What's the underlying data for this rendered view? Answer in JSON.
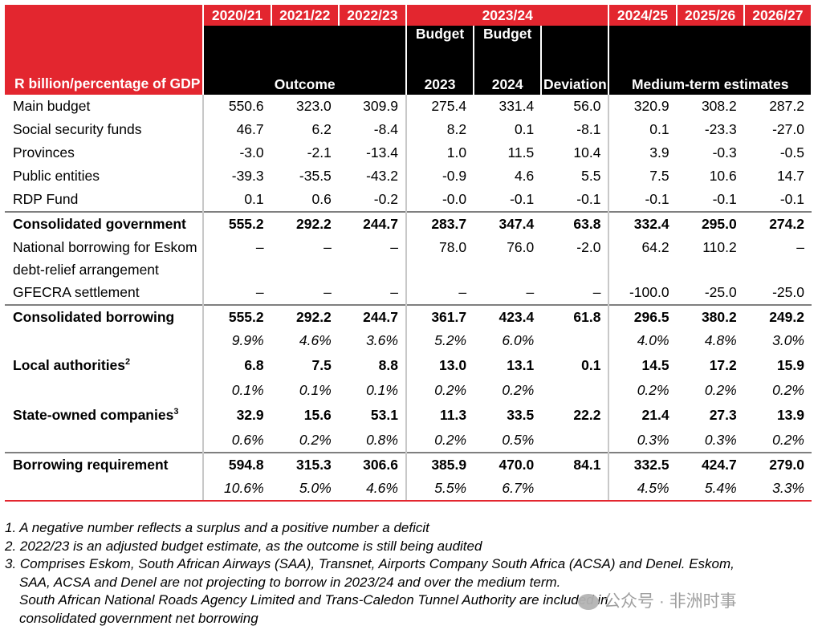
{
  "header": {
    "label": "R billion/percentage of GDP",
    "years_outcome": [
      "2020/21",
      "2021/22",
      "2022/23"
    ],
    "outcome_label": "Outcome",
    "year_current": "2023/24",
    "budget_a": {
      "top": "Budget",
      "bottom": "2023"
    },
    "budget_b": {
      "top": "Budget",
      "bottom": "2024"
    },
    "deviation": "Deviation",
    "years_mtef": [
      "2024/25",
      "2025/26",
      "2026/27"
    ],
    "mtef_label": "Medium-term estimates"
  },
  "rows": [
    {
      "label": "Main budget",
      "v": [
        "550.6",
        "323.0",
        "309.9",
        "275.4",
        "331.4",
        "56.0",
        "320.9",
        "308.2",
        "287.2"
      ]
    },
    {
      "label": "Social security funds",
      "v": [
        "46.7",
        "6.2",
        "-8.4",
        "8.2",
        "0.1",
        "-8.1",
        "0.1",
        "-23.3",
        "-27.0"
      ]
    },
    {
      "label": "Provinces",
      "v": [
        "-3.0",
        "-2.1",
        "-13.4",
        "1.0",
        "11.5",
        "10.4",
        "3.9",
        "-0.3",
        "-0.5"
      ]
    },
    {
      "label": "Public entities",
      "v": [
        "-39.3",
        "-35.5",
        "-43.2",
        "-0.9",
        "4.6",
        "5.5",
        "7.5",
        "10.6",
        "14.7"
      ]
    },
    {
      "label": "RDP Fund",
      "v": [
        "0.1",
        "0.6",
        "-0.2",
        "-0.0",
        "-0.1",
        "-0.1",
        "-0.1",
        "-0.1",
        "-0.1"
      ]
    },
    {
      "label": "Consolidated government",
      "v": [
        "555.2",
        "292.2",
        "244.7",
        "283.7",
        "347.4",
        "63.8",
        "332.4",
        "295.0",
        "274.2"
      ]
    },
    {
      "label": "National borrowing for Eskom debt-relief arrangement",
      "v": [
        "–",
        "–",
        "–",
        "78.0",
        "76.0",
        "-2.0",
        "64.2",
        "110.2",
        "–"
      ]
    },
    {
      "label": "GFECRA settlement",
      "v": [
        "–",
        "–",
        "–",
        "–",
        "–",
        "–",
        "-100.0",
        "-25.0",
        "-25.0"
      ]
    },
    {
      "label": "Consolidated borrowing",
      "v": [
        "555.2",
        "292.2",
        "244.7",
        "361.7",
        "423.4",
        "61.8",
        "296.5",
        "380.2",
        "249.2"
      ]
    },
    {
      "label": "",
      "v": [
        "9.9%",
        "4.6%",
        "3.6%",
        "5.2%",
        "6.0%",
        "",
        "4.0%",
        "4.8%",
        "3.0%"
      ]
    },
    {
      "label": "Local authorities",
      "sup": "2",
      "v": [
        "6.8",
        "7.5",
        "8.8",
        "13.0",
        "13.1",
        "0.1",
        "14.5",
        "17.2",
        "15.9"
      ]
    },
    {
      "label": "",
      "v": [
        "0.1%",
        "0.1%",
        "0.1%",
        "0.2%",
        "0.2%",
        "",
        "0.2%",
        "0.2%",
        "0.2%"
      ]
    },
    {
      "label": "State-owned companies",
      "sup": "3",
      "v": [
        "32.9",
        "15.6",
        "53.1",
        "11.3",
        "33.5",
        "22.2",
        "21.4",
        "27.3",
        "13.9"
      ]
    },
    {
      "label": "",
      "v": [
        "0.6%",
        "0.2%",
        "0.8%",
        "0.2%",
        "0.5%",
        "",
        "0.3%",
        "0.3%",
        "0.2%"
      ]
    },
    {
      "label": "Borrowing requirement",
      "v": [
        "594.8",
        "315.3",
        "306.6",
        "385.9",
        "470.0",
        "84.1",
        "332.5",
        "424.7",
        "279.0"
      ]
    },
    {
      "label": "",
      "v": [
        "10.6%",
        "5.0%",
        "4.6%",
        "5.5%",
        "6.7%",
        "",
        "4.5%",
        "5.4%",
        "3.3%"
      ]
    }
  ],
  "notes": [
    "1.  A negative number reflects a surplus and a positive number a deficit",
    "2.  2022/23  is an adjusted budget estimate, as the outcome is still being audited",
    "3. Comprises Eskom, South African Airways (SAA), Transnet, Airports Company South Africa (ACSA) and Denel. Eskom,",
    "SAA, ACSA and Denel are not projecting to borrow in  2023/24  and over the medium term.",
    "South African National Roads Agency Limited and Trans-Caledon Tunnel Authority are included in",
    "consolidated government net borrowing"
  ],
  "watermark": "公众号 · 非洲时事"
}
